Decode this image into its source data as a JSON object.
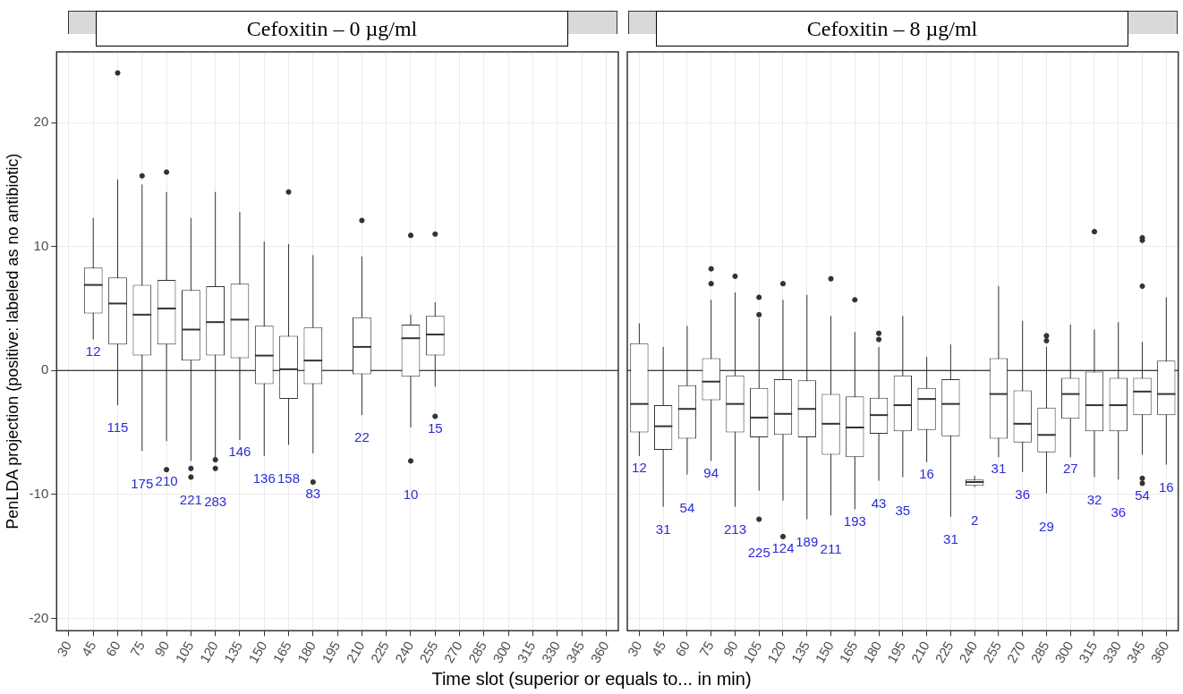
{
  "chart_data": [
    {
      "type": "box",
      "title": "Cefoxitin – 0 µg/ml",
      "ylabel": "PenLDA projection (positive: labeled as no antibiotic)",
      "xlabel": "Time slot (superior or equals to... in min)",
      "color": "#333333",
      "categories": [
        "30",
        "45",
        "60",
        "75",
        "90",
        "105",
        "120",
        "135",
        "150",
        "165",
        "180",
        "195",
        "210",
        "225",
        "240",
        "255",
        "270",
        "285",
        "300",
        "315",
        "330",
        "345",
        "360"
      ],
      "boxes": [
        null,
        {
          "low": 2.5,
          "q1": 4.6,
          "median": 6.9,
          "q3": 8.3,
          "high": 12.3
        },
        {
          "low": -2.8,
          "q1": 2.1,
          "median": 5.4,
          "q3": 7.5,
          "high": 15.4,
          "outliers": [
            24.0
          ]
        },
        {
          "low": -6.5,
          "q1": 1.2,
          "median": 4.5,
          "q3": 6.9,
          "high": 15.0,
          "outliers": [
            15.7
          ]
        },
        {
          "low": -5.7,
          "q1": 2.1,
          "median": 5.0,
          "q3": 7.3,
          "high": 14.4,
          "outliers": [
            16.0,
            -8.0
          ]
        },
        {
          "low": -7.3,
          "q1": 0.8,
          "median": 3.3,
          "q3": 6.5,
          "high": 12.3,
          "outliers": [
            -7.9,
            -8.6
          ]
        },
        {
          "low": -7.0,
          "q1": 1.2,
          "median": 3.9,
          "q3": 6.8,
          "high": 14.4,
          "outliers": [
            -7.2,
            -7.9
          ]
        },
        {
          "low": -5.6,
          "q1": 1.0,
          "median": 4.1,
          "q3": 7.0,
          "high": 12.8
        },
        {
          "low": -6.9,
          "q1": -1.1,
          "median": 1.2,
          "q3": 3.6,
          "high": 10.4
        },
        {
          "low": -6.0,
          "q1": -2.3,
          "median": 0.1,
          "q3": 2.8,
          "high": 10.2,
          "outliers": [
            14.4
          ]
        },
        {
          "low": -6.7,
          "q1": -1.1,
          "median": 0.8,
          "q3": 3.5,
          "high": 9.3,
          "outliers": [
            -9.0
          ]
        },
        null,
        {
          "low": -3.6,
          "q1": -0.3,
          "median": 1.9,
          "q3": 4.3,
          "high": 9.2,
          "outliers": [
            12.1
          ]
        },
        null,
        {
          "low": -4.6,
          "q1": -0.5,
          "median": 2.6,
          "q3": 3.7,
          "high": 4.5,
          "outliers": [
            10.9,
            -7.3
          ]
        },
        {
          "low": -1.3,
          "q1": 1.2,
          "median": 2.9,
          "q3": 4.4,
          "high": 5.5,
          "outliers": [
            11.0,
            -3.7
          ]
        },
        null,
        null,
        null,
        null,
        null,
        null,
        null
      ],
      "annotations": [
        "12",
        "115",
        "175",
        "210",
        "221",
        "283",
        "146",
        "136",
        "158",
        "83",
        "22",
        "10",
        "15"
      ],
      "ref_lines": [
        {
          "axis": "y",
          "value": 0,
          "color": "#000000"
        }
      ],
      "ylim": [
        -21,
        25.7
      ],
      "yticks": [
        -20,
        -10,
        0,
        10,
        20
      ],
      "grid": true
    },
    {
      "type": "box",
      "title": "Cefoxitin – 8 µg/ml",
      "color": "#333333",
      "tick_labels": "x",
      "categories": [
        "30",
        "45",
        "60",
        "75",
        "90",
        "105",
        "120",
        "135",
        "150",
        "165",
        "180",
        "195",
        "210",
        "225",
        "240",
        "255",
        "270",
        "285",
        "300",
        "315",
        "330",
        "345",
        "360"
      ],
      "boxes": [
        {
          "low": -6.9,
          "q1": -5.0,
          "median": -2.7,
          "q3": 2.2,
          "high": 3.8
        },
        {
          "low": -11.0,
          "q1": -6.4,
          "median": -4.5,
          "q3": -2.8,
          "high": 1.9
        },
        {
          "low": -8.4,
          "q1": -5.5,
          "median": -3.1,
          "q3": -1.2,
          "high": 3.6
        },
        {
          "low": -7.3,
          "q1": -2.4,
          "median": -0.9,
          "q3": 1.0,
          "high": 5.7,
          "outliers": [
            8.2,
            7.0
          ]
        },
        {
          "low": -11.0,
          "q1": -5.0,
          "median": -2.7,
          "q3": -0.4,
          "high": 6.3,
          "outliers": [
            7.6
          ]
        },
        {
          "low": -9.7,
          "q1": -5.4,
          "median": -3.8,
          "q3": -1.4,
          "high": 4.2,
          "outliers": [
            5.9,
            4.5,
            -12.0
          ]
        },
        {
          "low": -10.5,
          "q1": -5.2,
          "median": -3.5,
          "q3": -0.7,
          "high": 5.7,
          "outliers": [
            7.0,
            -13.4
          ]
        },
        {
          "low": -12.0,
          "q1": -5.4,
          "median": -3.1,
          "q3": -0.8,
          "high": 6.1
        },
        {
          "low": -11.7,
          "q1": -6.8,
          "median": -4.3,
          "q3": -1.9,
          "high": 4.4,
          "outliers": [
            7.4
          ]
        },
        {
          "low": -11.2,
          "q1": -7.0,
          "median": -4.6,
          "q3": -2.1,
          "high": 3.1,
          "outliers": [
            5.7
          ]
        },
        {
          "low": -8.9,
          "q1": -5.1,
          "median": -3.6,
          "q3": -2.2,
          "high": 1.9,
          "outliers": [
            3.0,
            2.5
          ]
        },
        {
          "low": -8.6,
          "q1": -4.9,
          "median": -2.8,
          "q3": -0.4,
          "high": 4.4
        },
        {
          "low": -7.4,
          "q1": -4.8,
          "median": -2.3,
          "q3": -1.4,
          "high": 1.1
        },
        {
          "low": -11.8,
          "q1": -5.3,
          "median": -2.7,
          "q3": -0.7,
          "high": 2.1
        },
        {
          "low": -9.4,
          "q1": -9.3,
          "median": -9.0,
          "q3": -8.8,
          "high": -8.5
        },
        {
          "low": -7.0,
          "q1": -5.5,
          "median": -1.9,
          "q3": 1.0,
          "high": 6.8
        },
        {
          "low": -8.2,
          "q1": -5.8,
          "median": -4.3,
          "q3": -1.6,
          "high": 4.0
        },
        {
          "low": -9.9,
          "q1": -6.6,
          "median": -5.2,
          "q3": -3.0,
          "high": 1.9,
          "outliers": [
            2.8,
            2.4
          ]
        },
        {
          "low": -7.0,
          "q1": -3.9,
          "median": -1.9,
          "q3": -0.6,
          "high": 3.7
        },
        {
          "low": -8.6,
          "q1": -4.9,
          "median": -2.8,
          "q3": -0.1,
          "high": 3.3,
          "outliers": [
            11.2
          ]
        },
        {
          "low": -8.8,
          "q1": -4.9,
          "median": -2.8,
          "q3": -0.6,
          "high": 3.9
        },
        {
          "low": -6.8,
          "q1": -3.6,
          "median": -1.7,
          "q3": -0.6,
          "high": 2.3,
          "outliers": [
            10.7,
            10.5,
            6.8,
            -8.7,
            -9.1
          ]
        },
        {
          "low": -7.6,
          "q1": -3.6,
          "median": -1.9,
          "q3": 0.8,
          "high": 5.9
        }
      ],
      "annotations": [
        "12",
        "31",
        "54",
        "94",
        "213",
        "225",
        "124",
        "189",
        "211",
        "193",
        "43",
        "35",
        "16",
        "31",
        "2",
        "31",
        "36",
        "29",
        "27",
        "32",
        "36",
        "54",
        "16"
      ],
      "ref_lines": [
        {
          "axis": "y",
          "value": 0,
          "color": "#000000"
        }
      ],
      "ylim": [
        -21,
        25.7
      ],
      "yticks": [
        -20,
        -10,
        0,
        10,
        20
      ],
      "grid": true
    }
  ]
}
